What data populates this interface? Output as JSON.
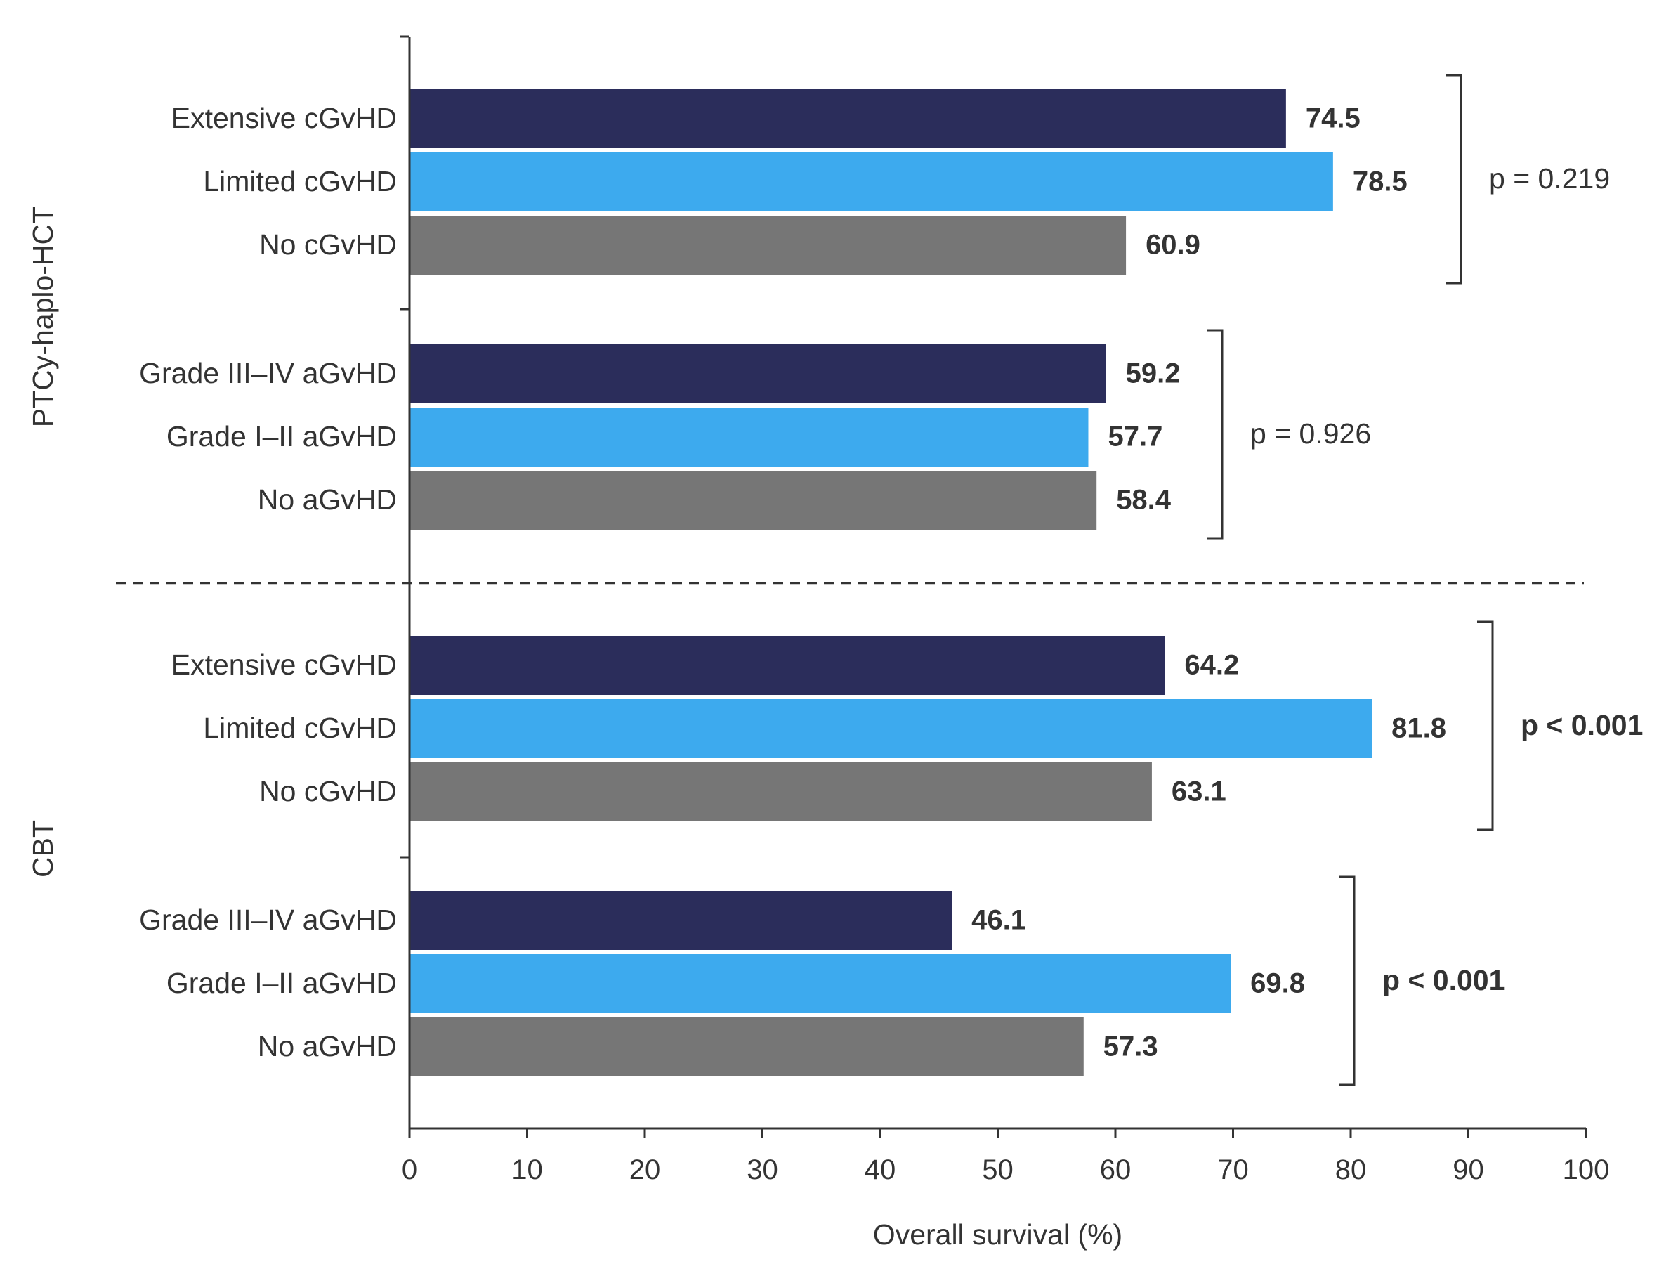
{
  "chart_data": {
    "type": "bar",
    "orientation": "horizontal",
    "xlabel": "Overall survival (%)",
    "xlim": [
      0,
      100
    ],
    "xticks": [
      0,
      10,
      20,
      30,
      40,
      50,
      60,
      70,
      80,
      90,
      100
    ],
    "grid": false,
    "colors": {
      "extensive_or_grade_iii_iv": "#2b2d5b",
      "limited_or_grade_i_ii": "#3daaee",
      "none": "#767676"
    },
    "panels": [
      {
        "name": "PTCy-haplo-HCT",
        "groups": [
          {
            "p_value": "p = 0.219",
            "p_bold": false,
            "bars": [
              {
                "category": "Extensive cGvHD",
                "value": 74.5,
                "value_label": "74.5",
                "color": "#2b2d5b"
              },
              {
                "category": "Limited cGvHD",
                "value": 78.5,
                "value_label": "78.5",
                "color": "#3daaee"
              },
              {
                "category": "No cGvHD",
                "value": 60.9,
                "value_label": "60.9",
                "color": "#767676"
              }
            ]
          },
          {
            "p_value": "p = 0.926",
            "p_bold": false,
            "bars": [
              {
                "category": "Grade III–IV aGvHD",
                "value": 59.2,
                "value_label": "59.2",
                "color": "#2b2d5b"
              },
              {
                "category": "Grade I–II aGvHD",
                "value": 57.7,
                "value_label": "57.7",
                "color": "#3daaee"
              },
              {
                "category": "No aGvHD",
                "value": 58.4,
                "value_label": "58.4",
                "color": "#767676"
              }
            ]
          }
        ]
      },
      {
        "name": "CBT",
        "groups": [
          {
            "p_value": "p < 0.001",
            "p_bold": true,
            "bars": [
              {
                "category": "Extensive cGvHD",
                "value": 64.2,
                "value_label": "64.2",
                "color": "#2b2d5b"
              },
              {
                "category": "Limited cGvHD",
                "value": 81.8,
                "value_label": "81.8",
                "color": "#3daaee"
              },
              {
                "category": "No cGvHD",
                "value": 63.1,
                "value_label": "63.1",
                "color": "#767676"
              }
            ]
          },
          {
            "p_value": "p < 0.001",
            "p_bold": true,
            "bars": [
              {
                "category": "Grade III–IV aGvHD",
                "value": 46.1,
                "value_label": "46.1",
                "color": "#2b2d5b"
              },
              {
                "category": "Grade I–II aGvHD",
                "value": 69.8,
                "value_label": "69.8",
                "color": "#3daaee"
              },
              {
                "category": "No aGvHD",
                "value": 57.3,
                "value_label": "57.3",
                "color": "#767676"
              }
            ]
          }
        ]
      }
    ]
  }
}
